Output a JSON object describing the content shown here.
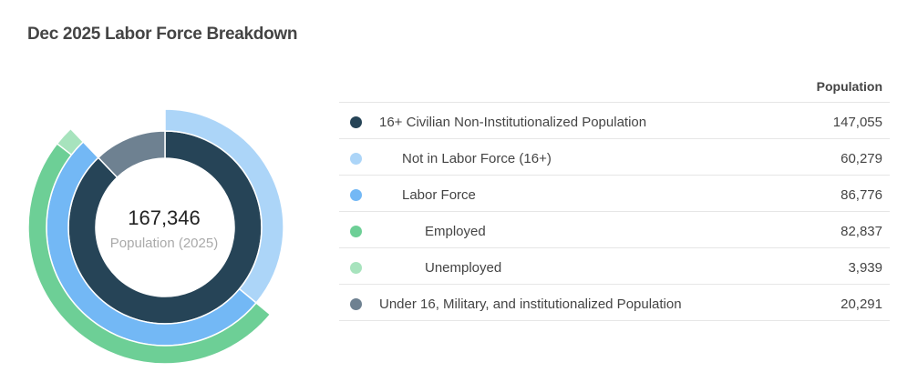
{
  "title": "Dec 2025 Labor Force Breakdown",
  "center": {
    "value": "167,346",
    "label": "Population (2025)"
  },
  "table": {
    "column_header": "Population"
  },
  "colors": {
    "civilian": "#264457",
    "not_in_lf": "#acd5f8",
    "labor_force": "#73b8f5",
    "employed": "#6dcf96",
    "unemployed": "#a7e3bd",
    "under16": "#6e8191"
  },
  "chart_data": {
    "type": "pie",
    "title": "Dec 2025 Labor Force Breakdown",
    "total": 167346,
    "rows": [
      {
        "label": "16+ Civilian Non-Institutionalized Population",
        "value": 147055,
        "display": "147,055",
        "level": 0,
        "color": "#264457"
      },
      {
        "label": "Not in Labor Force (16+)",
        "value": 60279,
        "display": "60,279",
        "level": 1,
        "color": "#acd5f8"
      },
      {
        "label": "Labor Force",
        "value": 86776,
        "display": "86,776",
        "level": 1,
        "color": "#73b8f5"
      },
      {
        "label": "Employed",
        "value": 82837,
        "display": "82,837",
        "level": 2,
        "color": "#6dcf96"
      },
      {
        "label": "Unemployed",
        "value": 3939,
        "display": "3,939",
        "level": 2,
        "color": "#a7e3bd"
      },
      {
        "label": "Under 16, Military, and institutionalized Population",
        "value": 20291,
        "display": "20,291",
        "level": 0,
        "color": "#6e8191"
      }
    ]
  }
}
